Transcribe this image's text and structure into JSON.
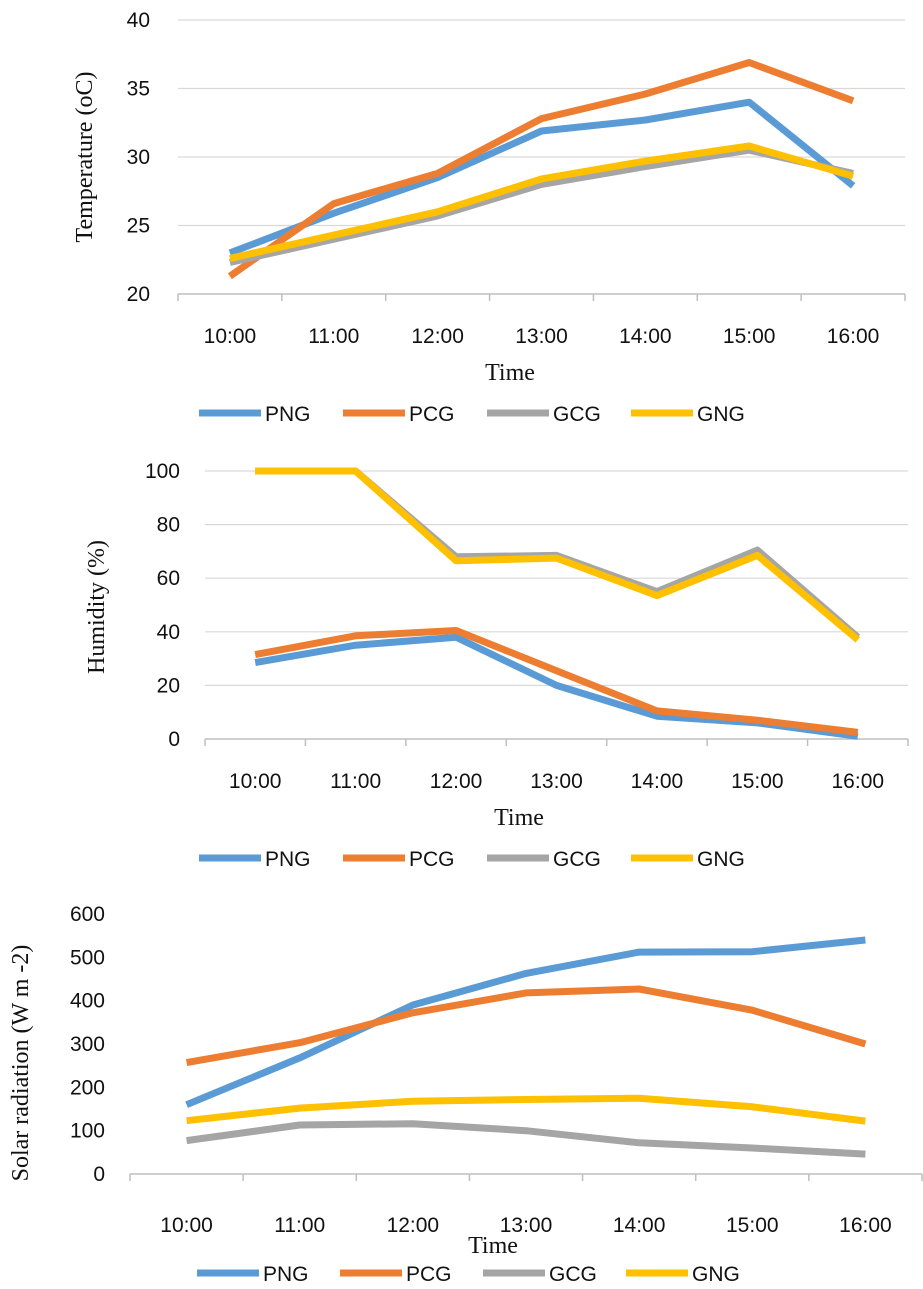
{
  "colors": {
    "PNG": "#5B9BD5",
    "PCG": "#ED7D31",
    "GCG": "#A5A5A5",
    "GNG": "#FFC000"
  },
  "chart_data": [
    {
      "type": "line",
      "categories": [
        "10:00",
        "11:00",
        "12:00",
        "13:00",
        "14:00",
        "15:00",
        "16:00"
      ],
      "xlabel": "Time",
      "ylabel": "Temperature (oC)",
      "ylim": [
        20,
        40
      ],
      "yticks": [
        20,
        25,
        30,
        35,
        40
      ],
      "grid": true,
      "legend": "bottom",
      "series": [
        {
          "name": "PNG",
          "values": [
            23.0,
            25.9,
            28.5,
            31.9,
            32.7,
            34.0,
            27.9
          ]
        },
        {
          "name": "PCG",
          "values": [
            21.3,
            26.6,
            28.8,
            32.8,
            34.6,
            36.9,
            34.1
          ]
        },
        {
          "name": "GCG",
          "values": [
            22.3,
            24.0,
            25.7,
            28.0,
            29.3,
            30.5,
            28.8
          ]
        },
        {
          "name": "GNG",
          "values": [
            22.6,
            24.3,
            26.0,
            28.4,
            29.7,
            30.8,
            28.6
          ]
        }
      ]
    },
    {
      "type": "line",
      "categories": [
        "10:00",
        "11:00",
        "12:00",
        "13:00",
        "14:00",
        "15:00",
        "16:00"
      ],
      "xlabel": "Time",
      "ylabel": "Humidity (%)",
      "ylim": [
        0,
        100
      ],
      "yticks": [
        0,
        20,
        40,
        60,
        80,
        100
      ],
      "grid": true,
      "legend": "bottom",
      "series": [
        {
          "name": "PNG",
          "values": [
            28.5,
            35.0,
            38.0,
            20.0,
            8.5,
            6.0,
            1.0
          ]
        },
        {
          "name": "PCG",
          "values": [
            31.5,
            38.5,
            40.5,
            25.5,
            10.5,
            7.0,
            2.5
          ]
        },
        {
          "name": "GCG",
          "values": [
            100,
            100,
            68.0,
            68.5,
            55.0,
            70.5,
            38.0
          ]
        },
        {
          "name": "GNG",
          "values": [
            100,
            100,
            66.5,
            67.5,
            53.5,
            68.5,
            37.0
          ]
        }
      ]
    },
    {
      "type": "line",
      "categories": [
        "10:00",
        "11:00",
        "12:00",
        "13:00",
        "14:00",
        "15:00",
        "16:00"
      ],
      "xlabel": "Time",
      "ylabel": "Solar radiation (W m -2)",
      "ylim": [
        0,
        600
      ],
      "yticks": [
        0,
        100,
        200,
        300,
        400,
        500,
        600
      ],
      "grid": false,
      "legend": "bottom",
      "series": [
        {
          "name": "PNG",
          "values": [
            160,
            268,
            390,
            463,
            512,
            513,
            540
          ]
        },
        {
          "name": "PCG",
          "values": [
            257,
            303,
            372,
            418,
            427,
            378,
            300
          ]
        },
        {
          "name": "GCG",
          "values": [
            77,
            113,
            116,
            100,
            72,
            60,
            46
          ]
        },
        {
          "name": "GNG",
          "values": [
            123,
            152,
            168,
            172,
            175,
            155,
            122
          ]
        }
      ]
    }
  ]
}
